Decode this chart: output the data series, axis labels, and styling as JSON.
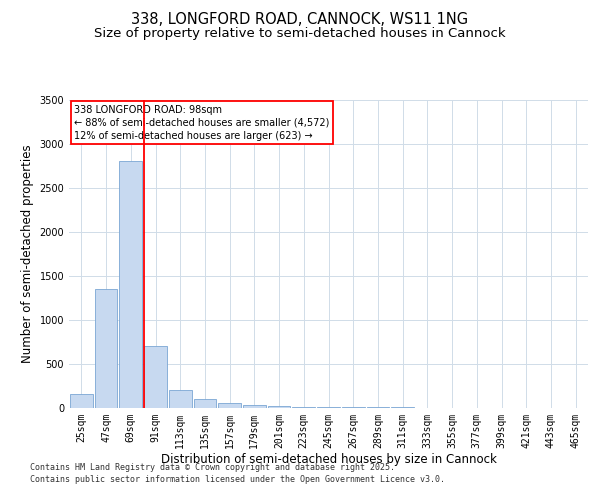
{
  "title": "338, LONGFORD ROAD, CANNOCK, WS11 1NG",
  "subtitle": "Size of property relative to semi-detached houses in Cannock",
  "xlabel": "Distribution of semi-detached houses by size in Cannock",
  "ylabel": "Number of semi-detached properties",
  "bins": [
    "25sqm",
    "47sqm",
    "69sqm",
    "91sqm",
    "113sqm",
    "135sqm",
    "157sqm",
    "179sqm",
    "201sqm",
    "223sqm",
    "245sqm",
    "267sqm",
    "289sqm",
    "311sqm",
    "333sqm",
    "355sqm",
    "377sqm",
    "399sqm",
    "421sqm",
    "443sqm",
    "465sqm"
  ],
  "values": [
    150,
    1350,
    2800,
    700,
    200,
    100,
    50,
    30,
    20,
    5,
    3,
    2,
    1,
    1,
    0,
    0,
    0,
    0,
    0,
    0,
    0
  ],
  "bar_color": "#c7d9f0",
  "bar_edge_color": "#7aa6d4",
  "annotation_line1": "338 LONGFORD ROAD: 98sqm",
  "annotation_line2": "← 88% of semi-detached houses are smaller (4,572)",
  "annotation_line3": "12% of semi-detached houses are larger (623) →",
  "ylim": [
    0,
    3500
  ],
  "yticks": [
    0,
    500,
    1000,
    1500,
    2000,
    2500,
    3000,
    3500
  ],
  "footer1": "Contains HM Land Registry data © Crown copyright and database right 2025.",
  "footer2": "Contains public sector information licensed under the Open Government Licence v3.0.",
  "background_color": "#ffffff",
  "grid_color": "#d0dce8",
  "title_fontsize": 10.5,
  "subtitle_fontsize": 9.5,
  "tick_fontsize": 7,
  "label_fontsize": 8.5,
  "annotation_fontsize": 7,
  "footer_fontsize": 6,
  "red_line_bin_index": 3
}
